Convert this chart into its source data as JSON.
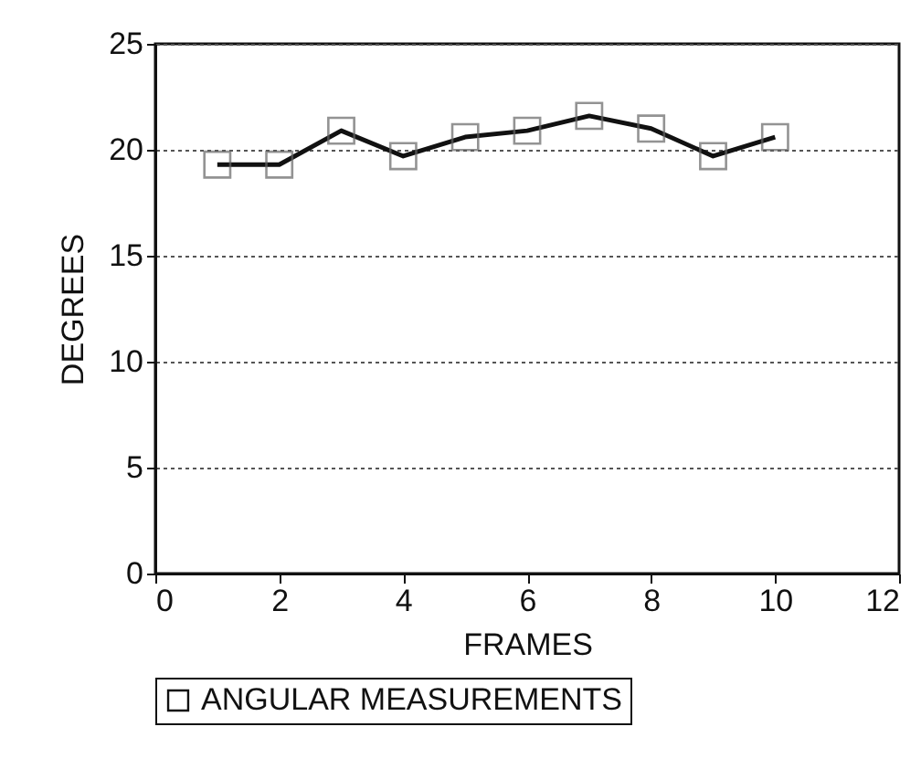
{
  "chart_data": {
    "type": "line",
    "xlabel": "FRAMES",
    "ylabel": "DEGREES",
    "x": [
      1,
      2,
      3,
      4,
      5,
      6,
      7,
      8,
      9,
      10
    ],
    "series": [
      {
        "name": "ANGULAR MEASUREMENTS",
        "color": "#111111",
        "values": [
          19.3,
          19.3,
          20.9,
          19.7,
          20.6,
          20.9,
          21.6,
          21.0,
          19.7,
          20.6
        ]
      }
    ],
    "xlim": [
      0,
      12
    ],
    "xticks": [
      0,
      2,
      4,
      6,
      8,
      10,
      12
    ],
    "ylim": [
      0,
      25
    ],
    "yticks": [
      0,
      5,
      10,
      15,
      20,
      25
    ],
    "grid": "y",
    "legend": "bottom",
    "marker": "square",
    "line_style": "solid"
  }
}
